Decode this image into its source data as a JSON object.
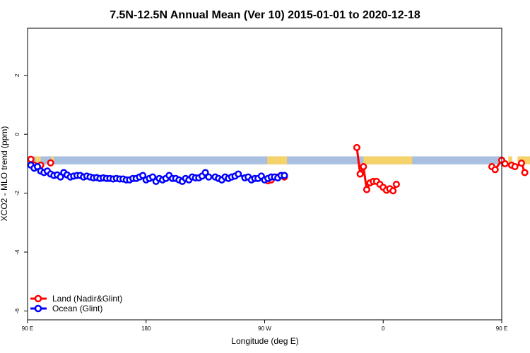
{
  "chart_data": {
    "type": "line",
    "title": "7.5N-12.5N Annual Mean (Ver 10)   2015-01-01 to 2020-12-18",
    "xlabel": "Longitude (deg E)",
    "ylabel": "XCO2 - MLO trend (ppm)",
    "xlim": [
      90,
      450
    ],
    "ylim": [
      -6.3,
      3.6
    ],
    "x_ticks": [
      {
        "value": 90,
        "label": "90 E"
      },
      {
        "value": 180,
        "label": "180"
      },
      {
        "value": 270,
        "label": "90 W"
      },
      {
        "value": 360,
        "label": "0"
      },
      {
        "value": 450,
        "label": "90 E"
      },
      {
        "value": 540,
        "label": "180"
      }
    ],
    "y_ticks": [
      {
        "value": 2,
        "label": "2"
      },
      {
        "value": 0,
        "label": "0"
      },
      {
        "value": -2,
        "label": "-2"
      },
      {
        "value": -4,
        "label": "-4"
      },
      {
        "value": -6,
        "label": "-6"
      }
    ],
    "grid": false,
    "legend_position": "bottom-left",
    "colors": {
      "land": "#ff0000",
      "ocean": "#0000ff",
      "band": "#a8bfe0",
      "landmass": "#f5d26a"
    },
    "series": [
      {
        "name": "Land (Nadir&Glint)",
        "color": "#ff0000",
        "points": [
          [
            92.5,
            -0.85
          ],
          [
            95,
            -1.05
          ],
          [
            97.5,
            -1.1
          ],
          [
            100,
            -1.05
          ],
          [
            107.5,
            -0.97
          ],
          [
            272.5,
            -1.58
          ],
          [
            275,
            -1.55
          ],
          [
            280,
            -1.45
          ],
          [
            282.5,
            -1.4
          ],
          [
            285,
            -1.45
          ],
          [
            340,
            -0.45
          ],
          [
            342.5,
            -1.35
          ],
          [
            345,
            -1.1
          ],
          [
            347.5,
            -1.88
          ],
          [
            350,
            -1.65
          ],
          [
            352.5,
            -1.6
          ],
          [
            355,
            -1.6
          ],
          [
            357.5,
            -1.7
          ],
          [
            360,
            -1.8
          ],
          [
            362.5,
            -1.9
          ],
          [
            365,
            -1.85
          ],
          [
            367.5,
            -1.92
          ],
          [
            370,
            -1.7
          ],
          [
            442.5,
            -1.1
          ],
          [
            445,
            -1.2
          ],
          [
            450,
            -0.88
          ],
          [
            452.5,
            -1.0
          ],
          [
            457.5,
            -1.05
          ],
          [
            460,
            -1.1
          ],
          [
            465,
            -0.98
          ],
          [
            467.5,
            -1.3
          ]
        ]
      },
      {
        "name": "Ocean (Glint)",
        "color": "#0000ff",
        "points": [
          [
            92.5,
            -1.05
          ],
          [
            95,
            -1.15
          ],
          [
            97.5,
            -1.1
          ],
          [
            100,
            -1.25
          ],
          [
            102.5,
            -1.3
          ],
          [
            105,
            -1.25
          ],
          [
            107.5,
            -1.35
          ],
          [
            110,
            -1.4
          ],
          [
            112.5,
            -1.38
          ],
          [
            115,
            -1.45
          ],
          [
            117.5,
            -1.3
          ],
          [
            120,
            -1.38
          ],
          [
            122.5,
            -1.45
          ],
          [
            125,
            -1.42
          ],
          [
            127.5,
            -1.4
          ],
          [
            130,
            -1.4
          ],
          [
            132.5,
            -1.45
          ],
          [
            135,
            -1.42
          ],
          [
            137.5,
            -1.45
          ],
          [
            140,
            -1.48
          ],
          [
            142.5,
            -1.47
          ],
          [
            145,
            -1.5
          ],
          [
            147.5,
            -1.48
          ],
          [
            150,
            -1.5
          ],
          [
            152.5,
            -1.5
          ],
          [
            155,
            -1.52
          ],
          [
            157.5,
            -1.5
          ],
          [
            160,
            -1.52
          ],
          [
            162.5,
            -1.52
          ],
          [
            165,
            -1.55
          ],
          [
            167.5,
            -1.55
          ],
          [
            170,
            -1.5
          ],
          [
            172.5,
            -1.5
          ],
          [
            175,
            -1.45
          ],
          [
            177.5,
            -1.4
          ],
          [
            180,
            -1.55
          ],
          [
            182.5,
            -1.5
          ],
          [
            185,
            -1.45
          ],
          [
            187.5,
            -1.6
          ],
          [
            190,
            -1.5
          ],
          [
            192.5,
            -1.55
          ],
          [
            195,
            -1.5
          ],
          [
            197.5,
            -1.4
          ],
          [
            200,
            -1.5
          ],
          [
            202.5,
            -1.5
          ],
          [
            205,
            -1.55
          ],
          [
            207.5,
            -1.6
          ],
          [
            210,
            -1.5
          ],
          [
            212.5,
            -1.55
          ],
          [
            215,
            -1.45
          ],
          [
            217.5,
            -1.48
          ],
          [
            220,
            -1.48
          ],
          [
            222.5,
            -1.42
          ],
          [
            225,
            -1.3
          ],
          [
            227.5,
            -1.45
          ],
          [
            232.5,
            -1.45
          ],
          [
            235,
            -1.5
          ],
          [
            237.5,
            -1.55
          ],
          [
            240,
            -1.45
          ],
          [
            242.5,
            -1.5
          ],
          [
            245,
            -1.45
          ],
          [
            247.5,
            -1.42
          ],
          [
            250,
            -1.35
          ],
          [
            255,
            -1.48
          ],
          [
            257.5,
            -1.45
          ],
          [
            260,
            -1.55
          ],
          [
            262.5,
            -1.5
          ],
          [
            265,
            -1.5
          ],
          [
            267.5,
            -1.42
          ],
          [
            270,
            -1.55
          ],
          [
            272.5,
            -1.5
          ],
          [
            275,
            -1.45
          ],
          [
            277.5,
            -1.45
          ],
          [
            280,
            -1.48
          ],
          [
            282.5,
            -1.4
          ],
          [
            285,
            -1.4
          ]
        ]
      }
    ]
  },
  "legend": {
    "land_label": "Land (Nadir&Glint)",
    "ocean_label": "Ocean (Glint)"
  }
}
